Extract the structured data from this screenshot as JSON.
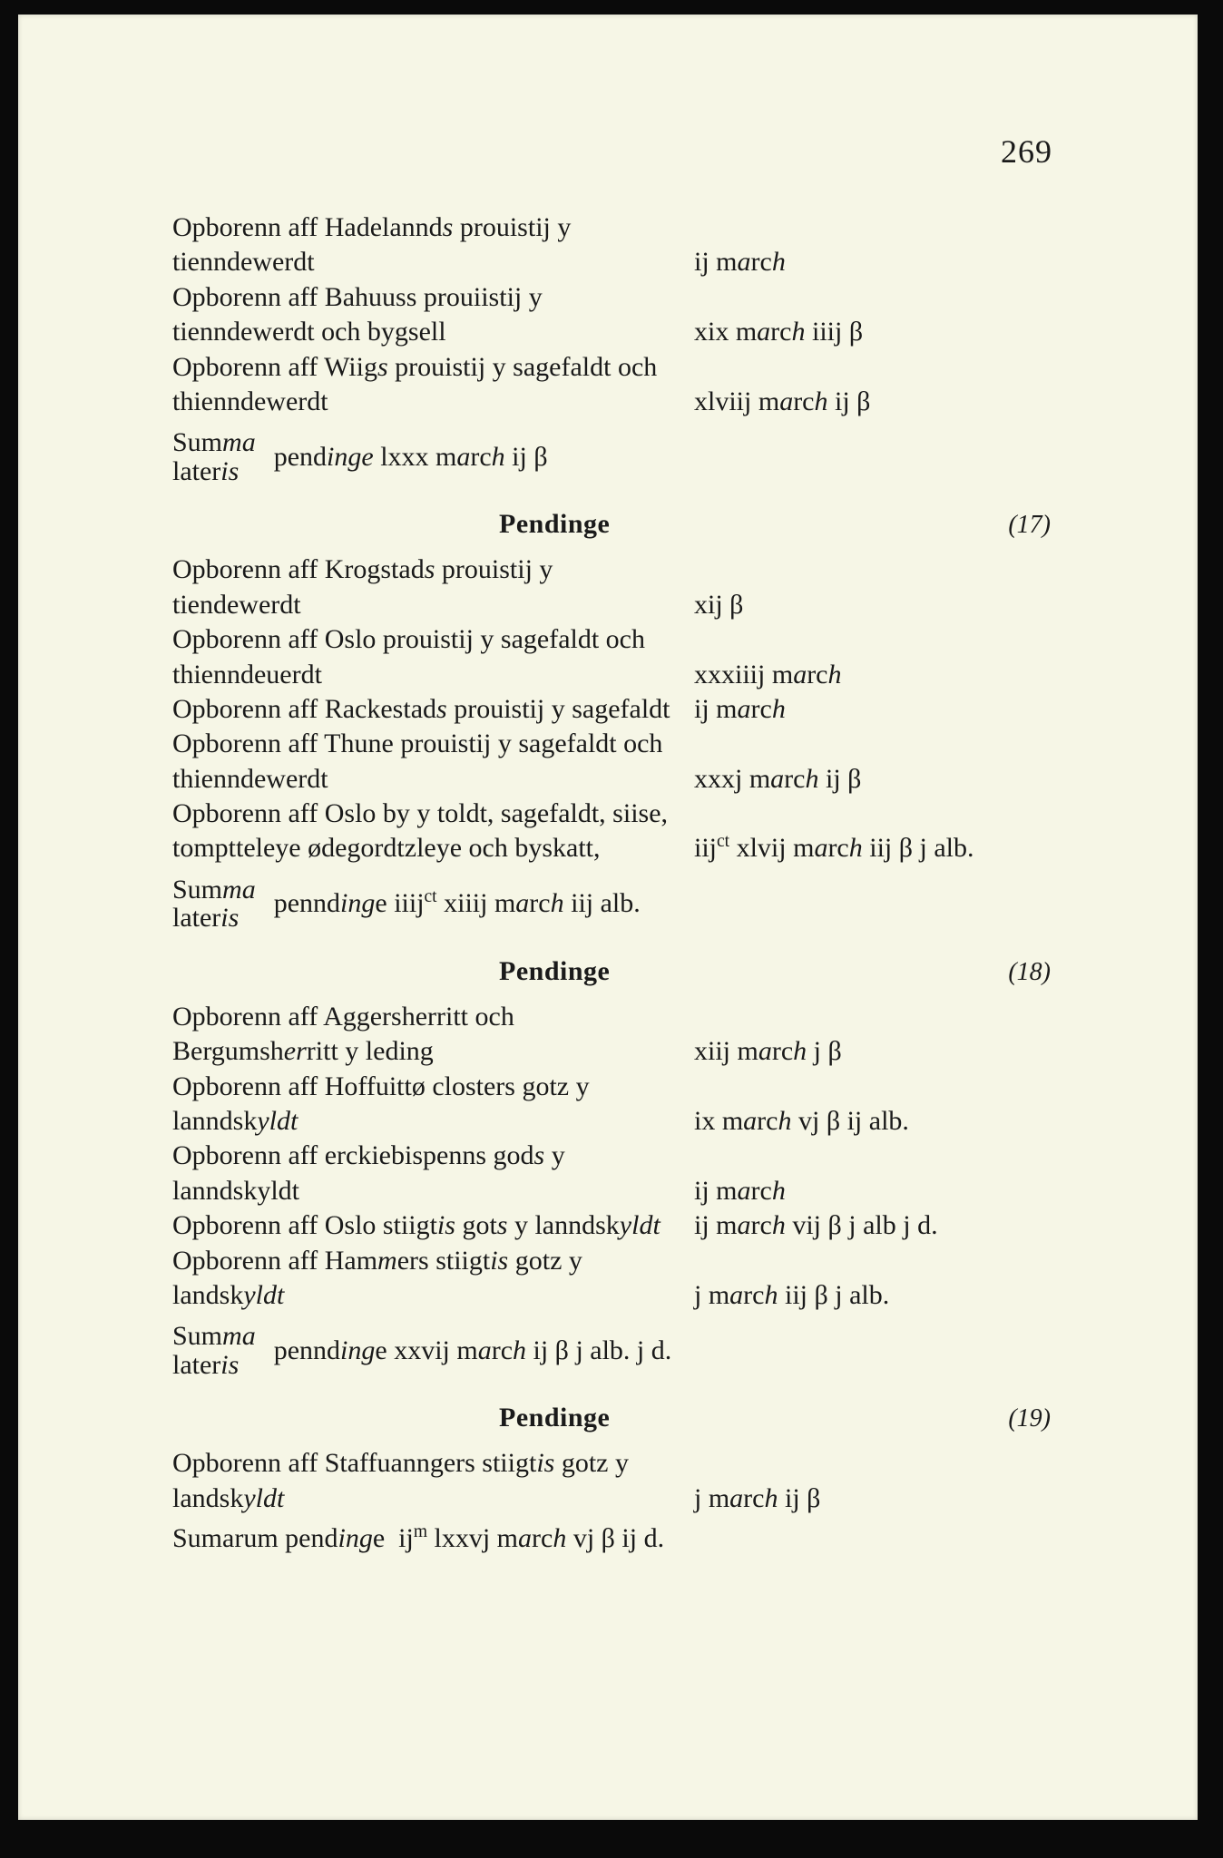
{
  "page_number": "269",
  "block0": {
    "entries": [
      {
        "label_html": "Opborenn aff Hadelannd<span class='italic'>s</span> prouistij y tienndewerdt",
        "amount_html": "ij m<span class='italic'>a</span>rc<span class='italic'>h</span>"
      },
      {
        "label_html": "Opborenn aff Bahuuss prouiistij y tienndewerdt och bygsell",
        "amount_html": "xix m<span class='italic'>a</span>rc<span class='italic'>h</span> iiij β"
      },
      {
        "label_html": "Opborenn aff Wiig<span class='italic'>s</span> prouistij y sagefaldt och thienndewerdt",
        "amount_html": "xlviij m<span class='italic'>a</span>rc<span class='italic'>h</span> ij β"
      }
    ],
    "summa_top": "Sum<span class='italic'>ma</span>",
    "summa_bot": "later<span class='italic'>is</span>",
    "summa_rest": "pend<span class='italic'>inge</span> lxxx m<span class='italic'>a</span>rc<span class='italic'>h</span> ij β"
  },
  "block1": {
    "heading": "Pendinge",
    "heading_num": "(17)",
    "entries": [
      {
        "label_html": "Opborenn aff Krogstad<span class='italic'>s</span> prouistij y tiendewerdt",
        "amount_html": "xij β"
      },
      {
        "label_html": "Opborenn aff Oslo prouistij y sagefaldt och thienndeuerdt",
        "amount_html": "xxxiiij m<span class='italic'>a</span>rc<span class='italic'>h</span>"
      },
      {
        "label_html": "Opborenn aff Rackestad<span class='italic'>s</span> prouistij y sagefaldt",
        "amount_html": "ij m<span class='italic'>a</span>rc<span class='italic'>h</span>"
      },
      {
        "label_html": "Opborenn aff Thune prouistij y sagefaldt och thienndewerdt",
        "amount_html": "xxxj m<span class='italic'>a</span>rc<span class='italic'>h</span> ij β"
      },
      {
        "label_html": "Opborenn aff Oslo by y toldt, sagefaldt, siise, tomptteleye ødegordtzleye och byskatt,",
        "amount_html": "iij<sup>ct</sup> xlvij m<span class='italic'>a</span>rc<span class='italic'>h</span> iij β j alb."
      }
    ],
    "summa_top": "Sum<span class='italic'>ma</span>",
    "summa_bot": "later<span class='italic'>is</span>",
    "summa_rest": "pennd<span class='italic'>ing</span>e iiij<sup>ct</sup> xiiij m<span class='italic'>a</span>rc<span class='italic'>h</span> iij alb."
  },
  "block2": {
    "heading": "Pendinge",
    "heading_num": "(18)",
    "entries": [
      {
        "label_html": "Opborenn aff Aggersherritt och Bergumsh<span class='italic'>er</span>ritt y leding",
        "amount_html": "xiij m<span class='italic'>a</span>rc<span class='italic'>h</span> j β"
      },
      {
        "label_html": "Opborenn aff Hoffuittø closters gotz y lanndsk<span class='italic'>yldt</span>",
        "amount_html": "ix m<span class='italic'>a</span>rc<span class='italic'>h</span> vj β ij alb."
      },
      {
        "label_html": "Opborenn aff erckiebispenns god<span class='italic'>s</span> y lanndskyldt",
        "amount_html": "ij m<span class='italic'>a</span>rc<span class='italic'>h</span>"
      },
      {
        "label_html": "Opborenn aff Oslo stiigt<span class='italic'>is</span> got<span class='italic'>s</span> y lanndsk<span class='italic'>yldt</span>",
        "amount_html": "ij m<span class='italic'>a</span>rc<span class='italic'>h</span> vij β j alb j d."
      },
      {
        "label_html": "Opborenn aff Ham<span class='italic'>m</span>ers stiigt<span class='italic'>is</span> gotz y landsk<span class='italic'>yldt</span>",
        "amount_html": "j m<span class='italic'>a</span>rc<span class='italic'>h</span> iij β j alb."
      }
    ],
    "summa_top": "Sum<span class='italic'>ma</span>",
    "summa_bot": "later<span class='italic'>is</span>",
    "summa_rest": "pennd<span class='italic'>ing</span>e xxvij m<span class='italic'>a</span>rc<span class='italic'>h</span> ij β j alb. j d."
  },
  "block3": {
    "heading": "Pendinge",
    "heading_num": "(19)",
    "entries": [
      {
        "label_html": "Opborenn aff Staffuanngers stiigt<span class='italic'>is</span> gotz y landsk<span class='italic'>yldt</span>",
        "amount_html": "j m<span class='italic'>a</span>rc<span class='italic'>h</span> ij β"
      }
    ],
    "sumarum": "Sumarum pend<span class='italic'>ing</span>e&nbsp;&nbsp;ij<sup>m</sup> lxxvj m<span class='italic'>a</span>rc<span class='italic'>h</span> vj β ij d."
  }
}
